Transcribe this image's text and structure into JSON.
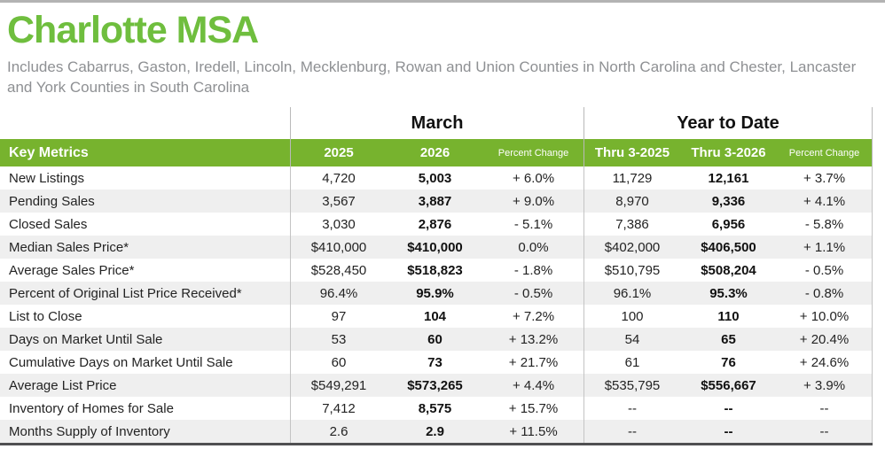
{
  "page": {
    "title": "Charlotte MSA",
    "subtitle": "Includes Cabarrus, Gaston, Iredell, Lincoln, Mecklenburg, Rowan and Union Counties in North Carolina and Chester, Lancaster and York Counties in South Carolina"
  },
  "colors": {
    "title_green": "#6fbe3e",
    "band_green": "#77b32e",
    "row_alt_gray": "#efefef",
    "subtitle_gray": "#8e9093",
    "bottom_rule": "#4f4f51"
  },
  "table": {
    "key_metrics_label": "Key Metrics",
    "sections": [
      {
        "label": "March",
        "columns": [
          "2025",
          "2026",
          "Percent Change"
        ]
      },
      {
        "label": "Year to Date",
        "columns": [
          "Thru 3-2025",
          "Thru 3-2026",
          "Percent Change"
        ]
      }
    ],
    "rows": [
      {
        "metric": "New Listings",
        "march": [
          "4,720",
          "5,003",
          "+ 6.0%"
        ],
        "ytd": [
          "11,729",
          "12,161",
          "+ 3.7%"
        ]
      },
      {
        "metric": "Pending Sales",
        "march": [
          "3,567",
          "3,887",
          "+ 9.0%"
        ],
        "ytd": [
          "8,970",
          "9,336",
          "+ 4.1%"
        ]
      },
      {
        "metric": "Closed Sales",
        "march": [
          "3,030",
          "2,876",
          "- 5.1%"
        ],
        "ytd": [
          "7,386",
          "6,956",
          "- 5.8%"
        ]
      },
      {
        "metric": "Median Sales Price*",
        "march": [
          "$410,000",
          "$410,000",
          "0.0%"
        ],
        "ytd": [
          "$402,000",
          "$406,500",
          "+ 1.1%"
        ]
      },
      {
        "metric": "Average Sales Price*",
        "march": [
          "$528,450",
          "$518,823",
          "- 1.8%"
        ],
        "ytd": [
          "$510,795",
          "$508,204",
          "- 0.5%"
        ]
      },
      {
        "metric": "Percent of Original List Price Received*",
        "march": [
          "96.4%",
          "95.9%",
          "- 0.5%"
        ],
        "ytd": [
          "96.1%",
          "95.3%",
          "- 0.8%"
        ]
      },
      {
        "metric": "List to Close",
        "march": [
          "97",
          "104",
          "+ 7.2%"
        ],
        "ytd": [
          "100",
          "110",
          "+ 10.0%"
        ]
      },
      {
        "metric": "Days on Market Until Sale",
        "march": [
          "53",
          "60",
          "+ 13.2%"
        ],
        "ytd": [
          "54",
          "65",
          "+ 20.4%"
        ]
      },
      {
        "metric": "Cumulative Days on Market Until Sale",
        "march": [
          "60",
          "73",
          "+ 21.7%"
        ],
        "ytd": [
          "61",
          "76",
          "+ 24.6%"
        ]
      },
      {
        "metric": "Average List Price",
        "march": [
          "$549,291",
          "$573,265",
          "+ 4.4%"
        ],
        "ytd": [
          "$535,795",
          "$556,667",
          "+ 3.9%"
        ]
      },
      {
        "metric": "Inventory of Homes for Sale",
        "march": [
          "7,412",
          "8,575",
          "+ 15.7%"
        ],
        "ytd": [
          "--",
          "--",
          "--"
        ]
      },
      {
        "metric": "Months Supply of Inventory",
        "march": [
          "2.6",
          "2.9",
          "+ 11.5%"
        ],
        "ytd": [
          "--",
          "--",
          "--"
        ]
      }
    ]
  }
}
